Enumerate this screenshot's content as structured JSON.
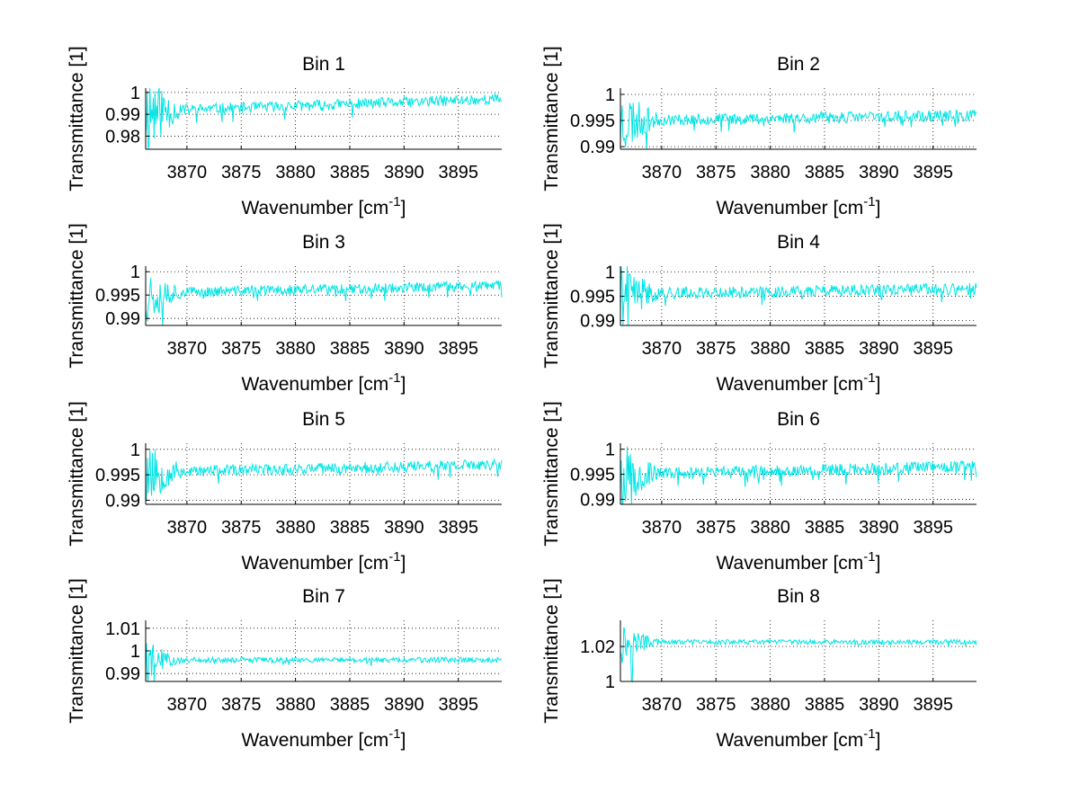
{
  "line_color": "#00e5e5",
  "chart_data": [
    {
      "type": "line",
      "title": "Bin 1",
      "xlabel": "Wavenumber [cm",
      "xlabel_sup": "-1",
      "xlabel_end": "]",
      "ylabel": "Transmittance [1]",
      "xlim": [
        3866.2,
        3899
      ],
      "ylim": [
        0.974,
        1.002
      ],
      "xticks": [
        3870,
        3875,
        3880,
        3885,
        3890,
        3895
      ],
      "xtick_labels": [
        "3870",
        "3875",
        "3880",
        "3885",
        "3890",
        "3895"
      ],
      "yticks": [
        0.98,
        0.99,
        1
      ],
      "ytick_labels": [
        "0.98",
        "0.99",
        "1"
      ],
      "grid": true,
      "noise_start": 0.9915,
      "noise_end": 0.997,
      "noise_amp": 0.0025,
      "edge_amp": 0.02,
      "seed": 11
    },
    {
      "type": "line",
      "title": "Bin 2",
      "xlabel": "Wavenumber [cm",
      "xlabel_sup": "-1",
      "xlabel_end": "]",
      "ylabel": "Transmittance [1]",
      "xlim": [
        3866.2,
        3899
      ],
      "ylim": [
        0.9895,
        1.0012
      ],
      "xticks": [
        3870,
        3875,
        3880,
        3885,
        3890,
        3895
      ],
      "xtick_labels": [
        "3870",
        "3875",
        "3880",
        "3885",
        "3890",
        "3895"
      ],
      "yticks": [
        0.99,
        0.995,
        1
      ],
      "ytick_labels": [
        "0.99",
        "0.995",
        "1"
      ],
      "grid": true,
      "noise_start": 0.995,
      "noise_end": 0.996,
      "noise_amp": 0.0011,
      "edge_amp": 0.006,
      "seed": 23
    },
    {
      "type": "line",
      "title": "Bin 3",
      "xlabel": "Wavenumber [cm",
      "xlabel_sup": "-1",
      "xlabel_end": "]",
      "ylabel": "Transmittance [1]",
      "xlim": [
        3866.2,
        3899
      ],
      "ylim": [
        0.9885,
        1.0012
      ],
      "xticks": [
        3870,
        3875,
        3880,
        3885,
        3890,
        3895
      ],
      "xtick_labels": [
        "3870",
        "3875",
        "3880",
        "3885",
        "3890",
        "3895"
      ],
      "yticks": [
        0.99,
        0.995,
        1
      ],
      "ytick_labels": [
        "0.99",
        "0.995",
        "1"
      ],
      "grid": true,
      "noise_start": 0.9955,
      "noise_end": 0.997,
      "noise_amp": 0.0011,
      "edge_amp": 0.006,
      "seed": 37
    },
    {
      "type": "line",
      "title": "Bin 4",
      "xlabel": "Wavenumber [cm",
      "xlabel_sup": "-1",
      "xlabel_end": "]",
      "ylabel": "Transmittance [1]",
      "xlim": [
        3866.2,
        3899
      ],
      "ylim": [
        0.989,
        1.0012
      ],
      "xticks": [
        3870,
        3875,
        3880,
        3885,
        3890,
        3895
      ],
      "xtick_labels": [
        "3870",
        "3875",
        "3880",
        "3885",
        "3890",
        "3895"
      ],
      "yticks": [
        0.99,
        0.995,
        1
      ],
      "ytick_labels": [
        "0.99",
        "0.995",
        "1"
      ],
      "grid": true,
      "noise_start": 0.9955,
      "noise_end": 0.9965,
      "noise_amp": 0.0012,
      "edge_amp": 0.006,
      "seed": 41
    },
    {
      "type": "line",
      "title": "Bin 5",
      "xlabel": "Wavenumber [cm",
      "xlabel_sup": "-1",
      "xlabel_end": "]",
      "ylabel": "Transmittance [1]",
      "xlim": [
        3866.2,
        3899
      ],
      "ylim": [
        0.9892,
        1.0012
      ],
      "xticks": [
        3870,
        3875,
        3880,
        3885,
        3890,
        3895
      ],
      "xtick_labels": [
        "3870",
        "3875",
        "3880",
        "3885",
        "3890",
        "3895"
      ],
      "yticks": [
        0.99,
        0.995,
        1
      ],
      "ytick_labels": [
        "0.99",
        "0.995",
        "1"
      ],
      "grid": true,
      "noise_start": 0.9955,
      "noise_end": 0.997,
      "noise_amp": 0.0011,
      "edge_amp": 0.006,
      "seed": 53
    },
    {
      "type": "line",
      "title": "Bin 6",
      "xlabel": "Wavenumber [cm",
      "xlabel_sup": "-1",
      "xlabel_end": "]",
      "ylabel": "Transmittance [1]",
      "xlim": [
        3866.2,
        3899
      ],
      "ylim": [
        0.989,
        1.0012
      ],
      "xticks": [
        3870,
        3875,
        3880,
        3885,
        3890,
        3895
      ],
      "xtick_labels": [
        "3870",
        "3875",
        "3880",
        "3885",
        "3890",
        "3895"
      ],
      "yticks": [
        0.99,
        0.995,
        1
      ],
      "ytick_labels": [
        "0.99",
        "0.995",
        "1"
      ],
      "grid": true,
      "noise_start": 0.995,
      "noise_end": 0.9965,
      "noise_amp": 0.0012,
      "edge_amp": 0.006,
      "seed": 67
    },
    {
      "type": "line",
      "title": "Bin 7",
      "xlabel": "Wavenumber [cm",
      "xlabel_sup": "-1",
      "xlabel_end": "]",
      "ylabel": "Transmittance [1]",
      "xlim": [
        3866.2,
        3899
      ],
      "ylim": [
        0.9865,
        1.0135
      ],
      "xticks": [
        3870,
        3875,
        3880,
        3885,
        3890,
        3895
      ],
      "xtick_labels": [
        "3870",
        "3875",
        "3880",
        "3885",
        "3890",
        "3895"
      ],
      "yticks": [
        0.99,
        1,
        1.01
      ],
      "ytick_labels": [
        "0.99",
        "1",
        "1.01"
      ],
      "grid": true,
      "noise_start": 0.996,
      "noise_end": 0.996,
      "noise_amp": 0.0012,
      "edge_amp": 0.008,
      "seed": 79
    },
    {
      "type": "line",
      "title": "Bin 8",
      "xlabel": "Wavenumber [cm",
      "xlabel_sup": "-1",
      "xlabel_end": "]",
      "ylabel": "Transmittance [1]",
      "xlim": [
        3866.2,
        3899
      ],
      "ylim": [
        1.0,
        1.035
      ],
      "xticks": [
        3870,
        3875,
        3880,
        3885,
        3890,
        3895
      ],
      "xtick_labels": [
        "3870",
        "3875",
        "3880",
        "3885",
        "3890",
        "3895"
      ],
      "yticks": [
        1,
        1.02
      ],
      "ytick_labels": [
        "1",
        "1.02"
      ],
      "grid": true,
      "noise_start": 1.0225,
      "noise_end": 1.0225,
      "noise_amp": 0.0014,
      "edge_amp": 0.012,
      "seed": 97
    }
  ]
}
